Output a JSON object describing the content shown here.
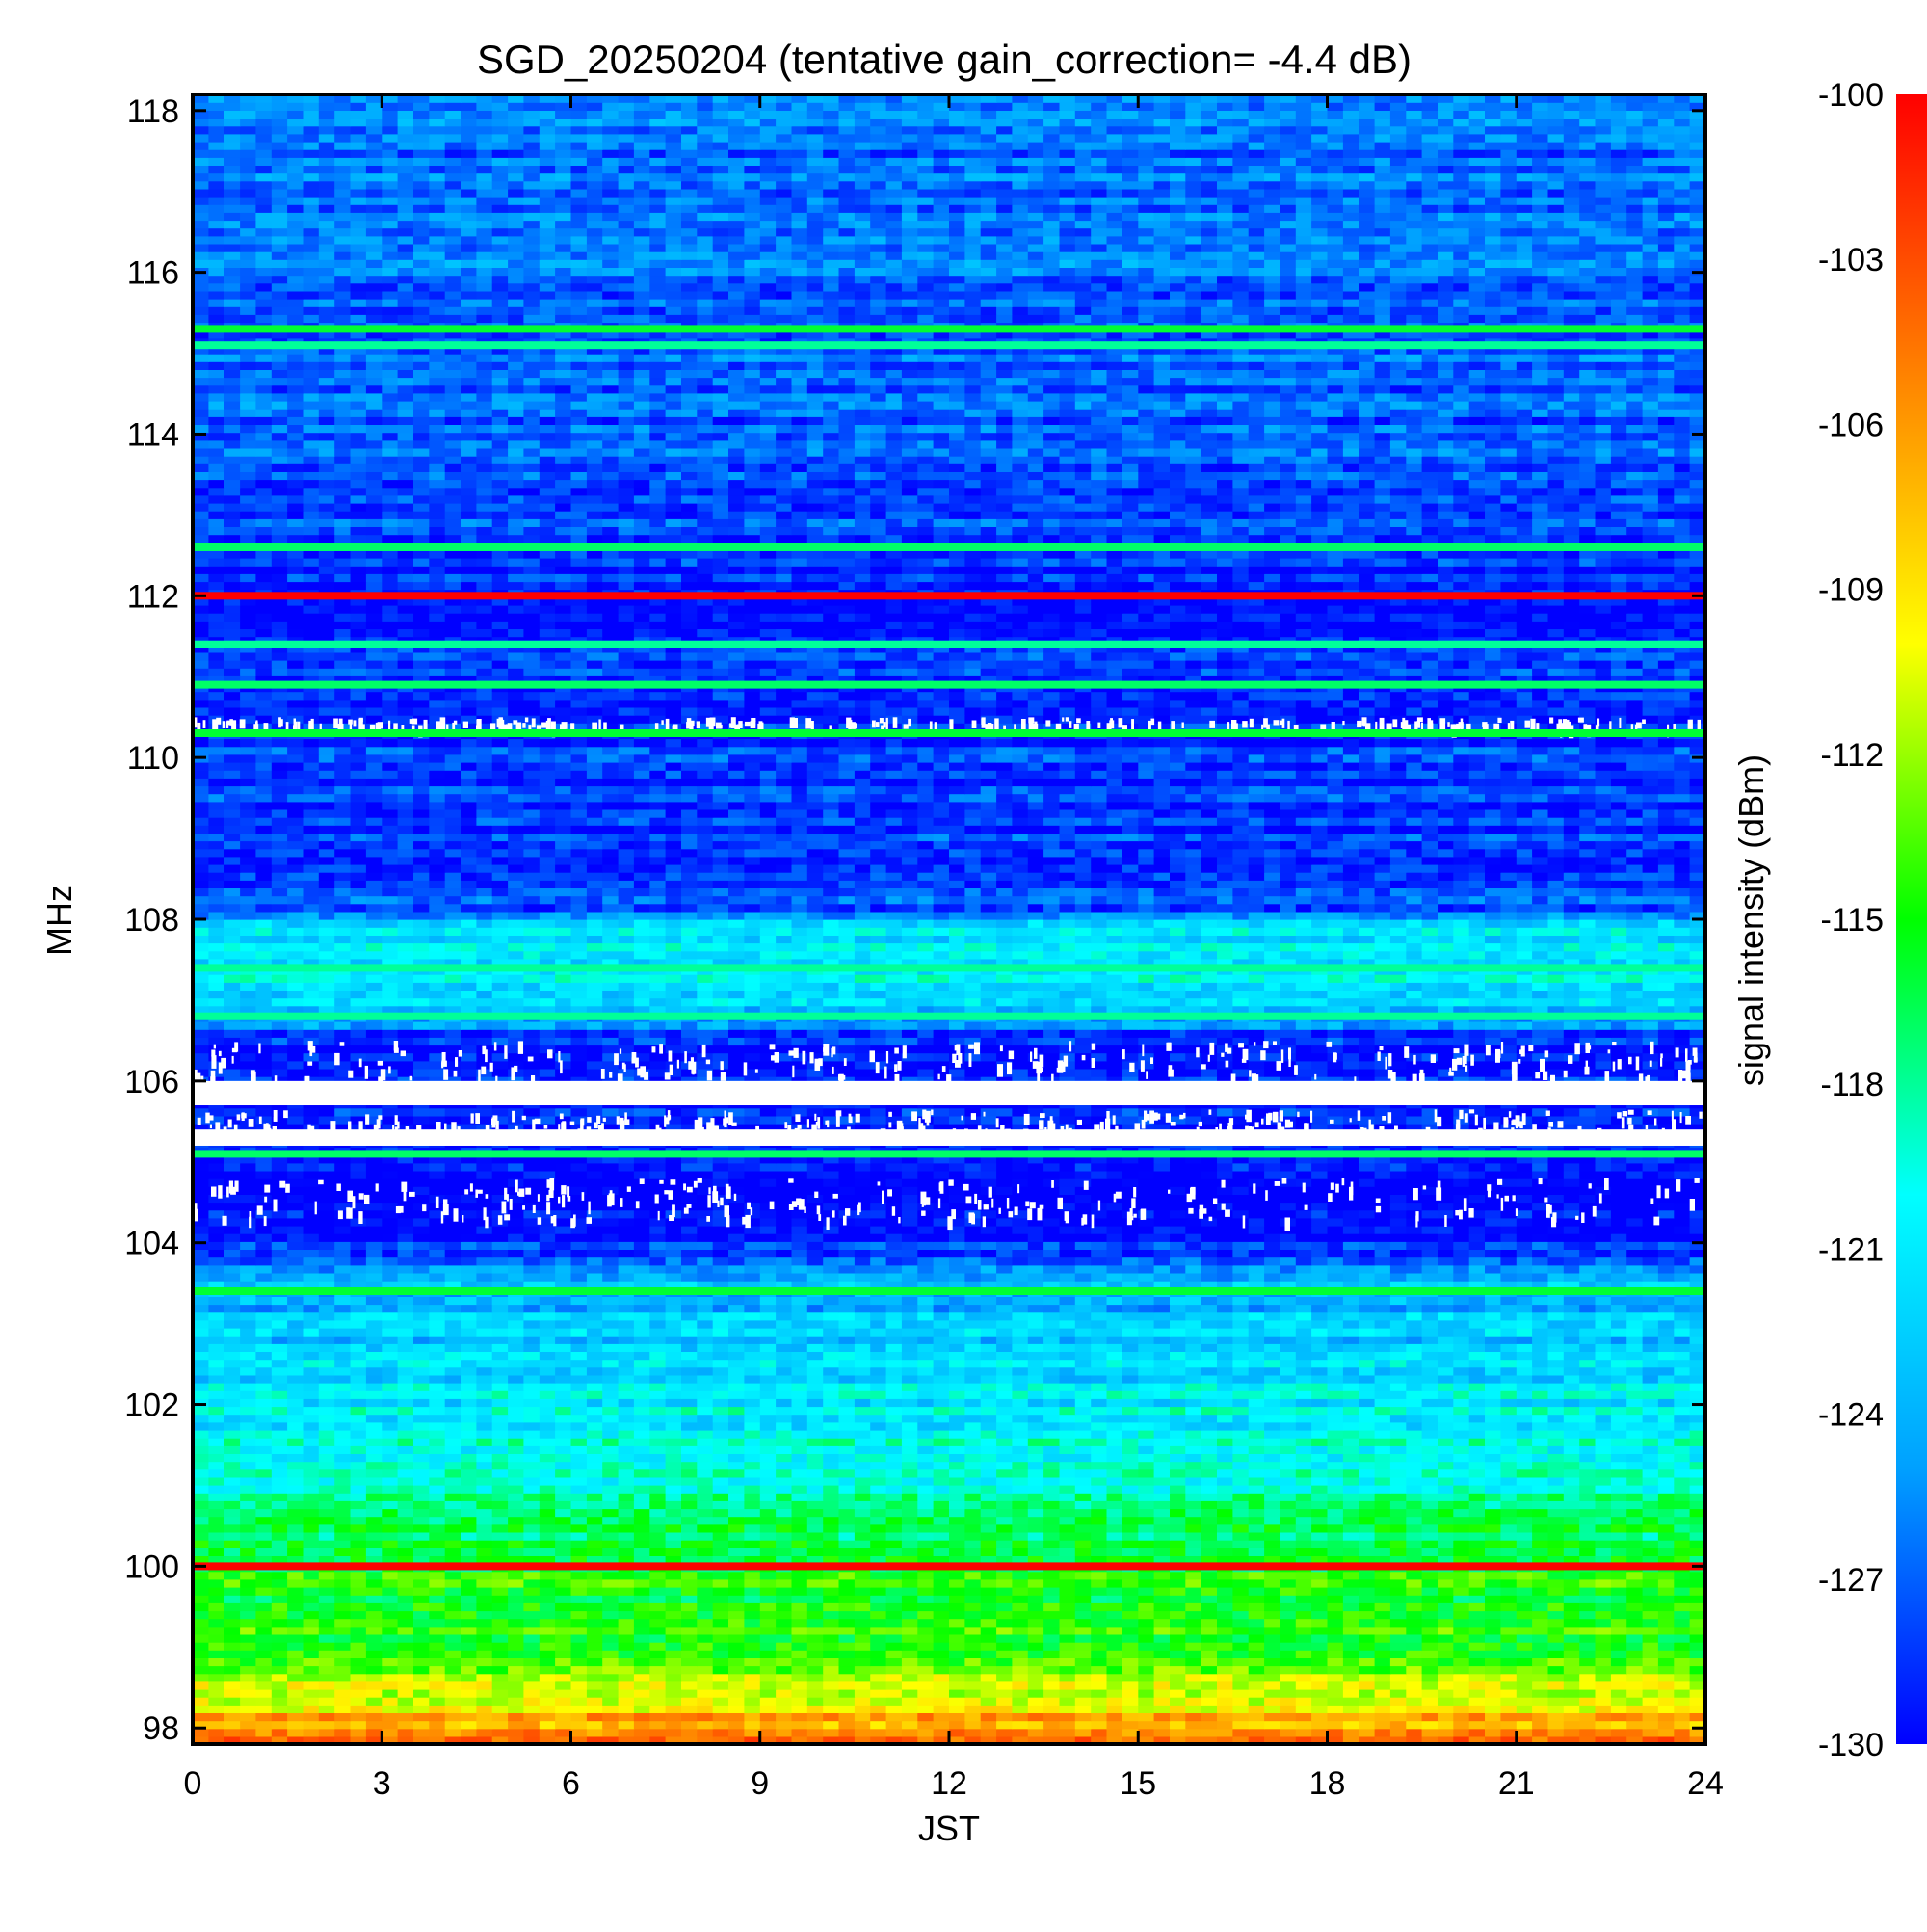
{
  "chart_data": {
    "type": "heatmap",
    "title": "SGD_20250204 (tentative gain_correction= -4.4 dB)",
    "xlabel": "JST",
    "ylabel": "MHz",
    "colorbar_label": "signal intensity (dBm)",
    "xlim": [
      0,
      24
    ],
    "ylim": [
      97.8,
      118.2
    ],
    "x_ticks": [
      0,
      3,
      6,
      9,
      12,
      15,
      18,
      21,
      24
    ],
    "y_ticks": [
      98,
      100,
      102,
      104,
      106,
      108,
      110,
      112,
      114,
      116,
      118
    ],
    "colorbar_range": [
      -130,
      -100
    ],
    "colorbar_ticks": [
      -100,
      -103,
      -106,
      -109,
      -112,
      -115,
      -118,
      -121,
      -124,
      -127,
      -130
    ],
    "colormap": [
      "#0000ff",
      "#00a0ff",
      "#00ffff",
      "#00ff00",
      "#ffff00",
      "#ff8000",
      "#ff0000"
    ],
    "background_profile": [
      {
        "mhz": 97.8,
        "dbm": -104
      },
      {
        "mhz": 98.3,
        "dbm": -109
      },
      {
        "mhz": 99.0,
        "dbm": -114
      },
      {
        "mhz": 100.3,
        "dbm": -116
      },
      {
        "mhz": 101.5,
        "dbm": -120
      },
      {
        "mhz": 102.5,
        "dbm": -122
      },
      {
        "mhz": 103.5,
        "dbm": -124
      },
      {
        "mhz": 104.0,
        "dbm": -129
      },
      {
        "mhz": 104.5,
        "dbm": -130
      },
      {
        "mhz": 106.5,
        "dbm": -129
      },
      {
        "mhz": 107.0,
        "dbm": -121
      },
      {
        "mhz": 107.9,
        "dbm": -121
      },
      {
        "mhz": 108.1,
        "dbm": -128
      },
      {
        "mhz": 112.0,
        "dbm": -129
      },
      {
        "mhz": 114.0,
        "dbm": -127
      },
      {
        "mhz": 118.2,
        "dbm": -126
      }
    ],
    "strong_signals": [
      {
        "mhz": 100.0,
        "dbm": -100
      },
      {
        "mhz": 103.4,
        "dbm": -116
      },
      {
        "mhz": 105.1,
        "dbm": -117
      },
      {
        "mhz": 106.8,
        "dbm": -118
      },
      {
        "mhz": 107.4,
        "dbm": -118
      },
      {
        "mhz": 110.3,
        "dbm": -116
      },
      {
        "mhz": 110.9,
        "dbm": -117
      },
      {
        "mhz": 111.4,
        "dbm": -118
      },
      {
        "mhz": 112.0,
        "dbm": -100
      },
      {
        "mhz": 112.6,
        "dbm": -117
      },
      {
        "mhz": 115.1,
        "dbm": -118
      },
      {
        "mhz": 115.3,
        "dbm": -116
      }
    ],
    "blank_bands_mhz": [
      [
        105.7,
        106.0
      ],
      [
        105.2,
        105.4
      ]
    ],
    "speckled_bands_mhz": [
      [
        104.3,
        104.8
      ],
      [
        105.4,
        105.65
      ],
      [
        106.05,
        106.5
      ],
      [
        110.4,
        110.5
      ]
    ]
  }
}
